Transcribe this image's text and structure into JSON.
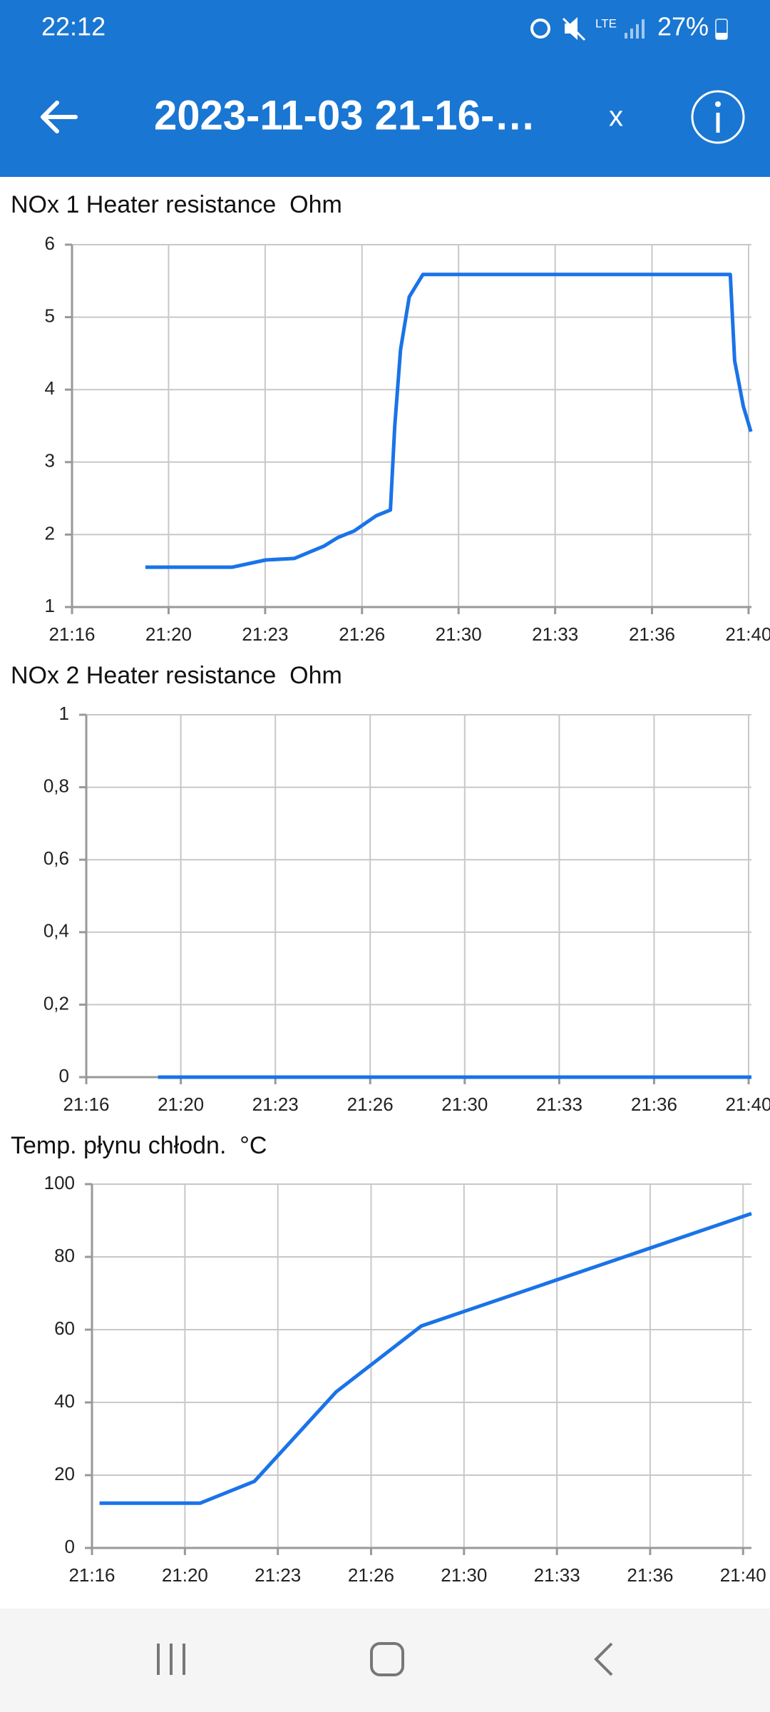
{
  "status_bar": {
    "time": "22:12",
    "network": "LTE",
    "battery": "27%"
  },
  "app_bar": {
    "title": "2023-11-03 21-16-…",
    "close": "x"
  },
  "chart_data": [
    {
      "type": "line",
      "title": "NOx 1 Heater resistance  Ohm",
      "color": "#1a73e8",
      "grid": true,
      "x": [
        1279.2,
        1282.2,
        1283.35,
        1284.33,
        1285.35,
        1285.84,
        1286.4,
        1287.16,
        1287.65,
        1287.8,
        1288.0,
        1288.3,
        1288.77,
        1299.37,
        1299.52,
        1299.82,
        1300.08
      ],
      "values": [
        1.55,
        1.55,
        1.65,
        1.67,
        1.84,
        1.96,
        2.05,
        2.26,
        2.34,
        3.5,
        4.55,
        5.28,
        5.59,
        5.59,
        4.4,
        3.77,
        3.42
      ],
      "xlim": [
        1276.67,
        1300.1
      ],
      "ylim": [
        1,
        6
      ],
      "xticks": [
        {
          "value": 1276.67,
          "label": "21:16"
        },
        {
          "value": 1280,
          "label": "21:20"
        },
        {
          "value": 1283.33,
          "label": "21:23"
        },
        {
          "value": 1286.67,
          "label": "21:26"
        },
        {
          "value": 1290,
          "label": "21:30"
        },
        {
          "value": 1293.33,
          "label": "21:33"
        },
        {
          "value": 1296.67,
          "label": "21:36"
        },
        {
          "value": 1300,
          "label": "21:40"
        }
      ],
      "yticks": [
        1,
        2,
        3,
        4,
        5,
        6
      ]
    },
    {
      "type": "line",
      "title": "NOx 2 Heater resistance  Ohm",
      "color": "#1a73e8",
      "grid": true,
      "x": [
        1279.2,
        1300.1
      ],
      "values": [
        0,
        0
      ],
      "xlim": [
        1276.67,
        1300.1
      ],
      "ylim": [
        0,
        1
      ],
      "xticks": [
        {
          "value": 1276.67,
          "label": "21:16"
        },
        {
          "value": 1280,
          "label": "21:20"
        },
        {
          "value": 1283.33,
          "label": "21:23"
        },
        {
          "value": 1286.67,
          "label": "21:26"
        },
        {
          "value": 1290,
          "label": "21:30"
        },
        {
          "value": 1293.33,
          "label": "21:33"
        },
        {
          "value": 1296.67,
          "label": "21:36"
        },
        {
          "value": 1300,
          "label": "21:40"
        }
      ],
      "yticks": [
        0,
        {
          "value": 0.2,
          "label": "0,2"
        },
        {
          "value": 0.4,
          "label": "0,4"
        },
        {
          "value": 0.6,
          "label": "0,6"
        },
        {
          "value": 0.8,
          "label": "0,8"
        },
        1
      ]
    },
    {
      "type": "line",
      "title": "Temp. płynu chłodn.  °C",
      "color": "#1a73e8",
      "grid": true,
      "x": [
        1276.94,
        1280.54,
        1282.49,
        1285.42,
        1288.47,
        1300.3
      ],
      "values": [
        12.3,
        12.3,
        18.3,
        42.9,
        61,
        91.9
      ],
      "xlim": [
        1276.67,
        1300.3
      ],
      "ylim": [
        0,
        100
      ],
      "xticks": [
        {
          "value": 1276.67,
          "label": "21:16"
        },
        {
          "value": 1280,
          "label": "21:20"
        },
        {
          "value": 1283.33,
          "label": "21:23"
        },
        {
          "value": 1286.67,
          "label": "21:26"
        },
        {
          "value": 1290,
          "label": "21:30"
        },
        {
          "value": 1293.33,
          "label": "21:33"
        },
        {
          "value": 1296.67,
          "label": "21:36"
        },
        {
          "value": 1300,
          "label": "21:40"
        }
      ],
      "yticks": [
        0,
        20,
        40,
        60,
        80,
        100
      ]
    }
  ]
}
